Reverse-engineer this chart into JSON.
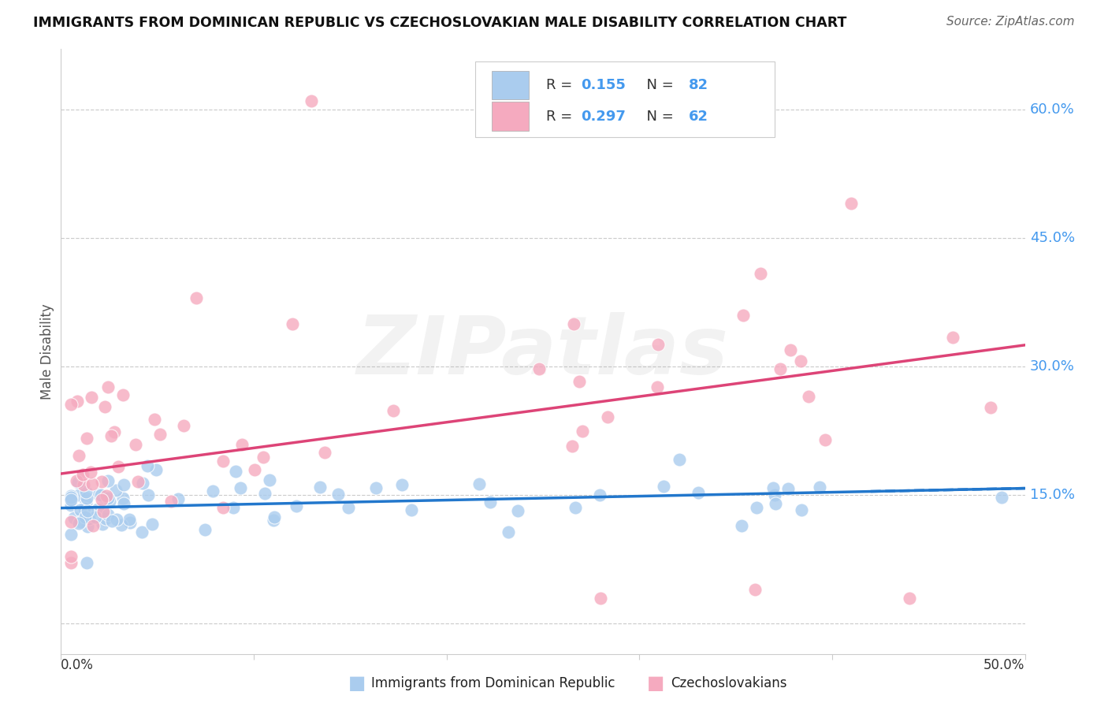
{
  "title": "IMMIGRANTS FROM DOMINICAN REPUBLIC VS CZECHOSLOVAKIAN MALE DISABILITY CORRELATION CHART",
  "source": "Source: ZipAtlas.com",
  "ylabel": "Male Disability",
  "y_ticks": [
    0.0,
    0.15,
    0.3,
    0.45,
    0.6
  ],
  "y_tick_labels": [
    "",
    "15.0%",
    "30.0%",
    "45.0%",
    "60.0%"
  ],
  "xlim": [
    0.0,
    0.5
  ],
  "ylim": [
    -0.035,
    0.67
  ],
  "legend_labels": [
    "Immigrants from Dominican Republic",
    "Czechoslovakians"
  ],
  "R_blue": "0.155",
  "N_blue": "82",
  "R_pink": "0.297",
  "N_pink": "62",
  "blue_color": "#aaccee",
  "pink_color": "#f5aabf",
  "blue_line_color": "#2277cc",
  "pink_line_color": "#dd4477",
  "title_color": "#111111",
  "source_color": "#666666",
  "grid_color": "#cccccc",
  "watermark": "ZIPatlas",
  "right_label_color": "#4499ee",
  "legend_text_color": "#222222",
  "blue_trend_x0": 0.0,
  "blue_trend_y0": 0.135,
  "blue_trend_x1": 0.5,
  "blue_trend_y1": 0.158,
  "pink_trend_x0": 0.0,
  "pink_trend_y0": 0.175,
  "pink_trend_x1": 0.5,
  "pink_trend_y1": 0.325
}
